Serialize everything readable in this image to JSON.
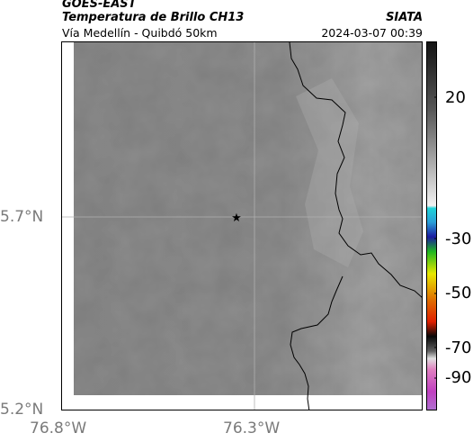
{
  "header": {
    "satellite": "GOES-EAST",
    "product": "Temperatura de Brillo CH13",
    "region": "Vía Medellín - Quibdó 50km",
    "org": "SIATA",
    "datetime": "2024-03-07 00:39"
  },
  "map": {
    "y_ticks": [
      "5.7°N",
      "5.2°N"
    ],
    "x_ticks": [
      "76.8°W",
      "76.3°W"
    ],
    "marker_icon": "star-icon"
  },
  "colorbar": {
    "tick_labels": [
      "20",
      "-30",
      "-50",
      "-70",
      "-90"
    ],
    "colors": {
      "dark_top": "#141414",
      "light_gray": "#dcdcdc",
      "cyan": "#1fd3d8",
      "blue": "#1a1aa0",
      "green": "#20b820",
      "yellow": "#e8e800",
      "red": "#e02000",
      "black": "#080808",
      "magenta": "#c040c0"
    }
  },
  "colors": {
    "map_gray": "#8a8a8a",
    "boundary": "#000000",
    "gridline": "#b0b0b0"
  }
}
